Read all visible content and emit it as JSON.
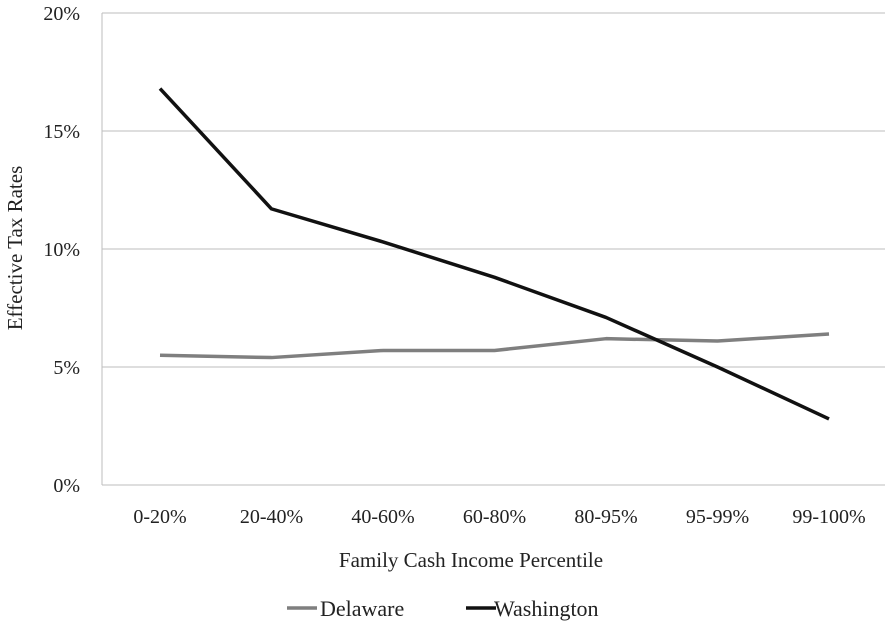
{
  "chart_data": {
    "type": "line",
    "title": "",
    "xlabel": "Family Cash Income Percentile",
    "ylabel": "Effective Tax Rates",
    "categories": [
      "0-20%",
      "20-40%",
      "40-60%",
      "60-80%",
      "80-95%",
      "95-99%",
      "99-100%"
    ],
    "y_ticks": [
      "0%",
      "5%",
      "10%",
      "15%",
      "20%"
    ],
    "ylim": [
      0,
      20
    ],
    "y_tick_values": [
      0,
      5,
      10,
      15,
      20
    ],
    "grid": true,
    "legend_position": "bottom",
    "series": [
      {
        "name": "Delaware",
        "color": "#7f7f7f",
        "values": [
          5.5,
          5.4,
          5.7,
          5.7,
          6.2,
          6.1,
          6.4
        ]
      },
      {
        "name": "Washington",
        "color": "#111111",
        "values": [
          16.8,
          11.7,
          10.3,
          8.8,
          7.1,
          5.0,
          2.8
        ]
      }
    ]
  }
}
